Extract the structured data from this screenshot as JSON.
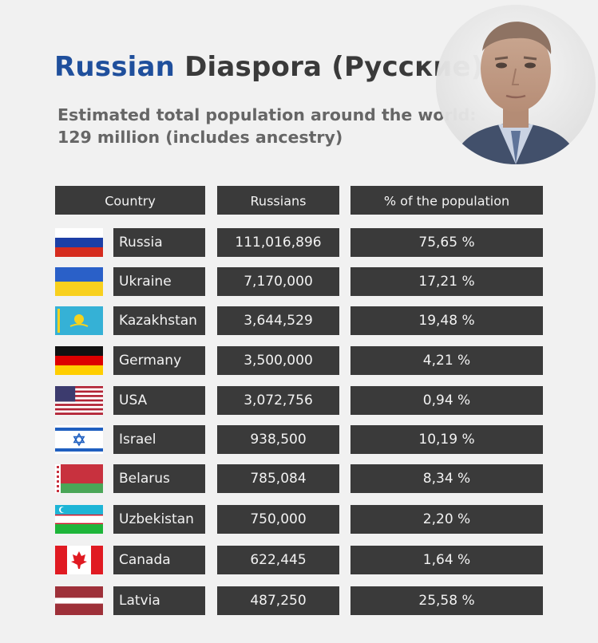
{
  "header": {
    "title_highlight": "Russian",
    "title_rest": " Diaspora (Русские)",
    "subtitle_line1": "Estimated total population around the world:",
    "subtitle_line2": "129 million (includes ancestry)"
  },
  "colors": {
    "accent": "#1f4f9c",
    "cell_bg": "#3a3a3a",
    "page_bg": "#f1f1f1"
  },
  "chart_data": {
    "type": "table",
    "columns": [
      "Country",
      "Russians",
      "% of the population"
    ],
    "rows": [
      {
        "country": "Russia",
        "flag": "russia",
        "russians": "111,016,896",
        "percent": "75,65 %"
      },
      {
        "country": "Ukraine",
        "flag": "ukraine",
        "russians": "7,170,000",
        "percent": "17,21 %"
      },
      {
        "country": "Kazakhstan",
        "flag": "kazakhstan",
        "russians": "3,644,529",
        "percent": "19,48 %"
      },
      {
        "country": "Germany",
        "flag": "germany",
        "russians": "3,500,000",
        "percent": "4,21 %"
      },
      {
        "country": "USA",
        "flag": "usa",
        "russians": "3,072,756",
        "percent": "0,94 %"
      },
      {
        "country": "Israel",
        "flag": "israel",
        "russians": "938,500",
        "percent": "10,19 %"
      },
      {
        "country": "Belarus",
        "flag": "belarus",
        "russians": "785,084",
        "percent": "8,34 %"
      },
      {
        "country": "Uzbekistan",
        "flag": "uzbekistan",
        "russians": "750,000",
        "percent": "2,20 %"
      },
      {
        "country": "Canada",
        "flag": "canada",
        "russians": "622,445",
        "percent": "1,64 %"
      },
      {
        "country": "Latvia",
        "flag": "latvia",
        "russians": "487,250",
        "percent": "25,58 %"
      }
    ]
  }
}
